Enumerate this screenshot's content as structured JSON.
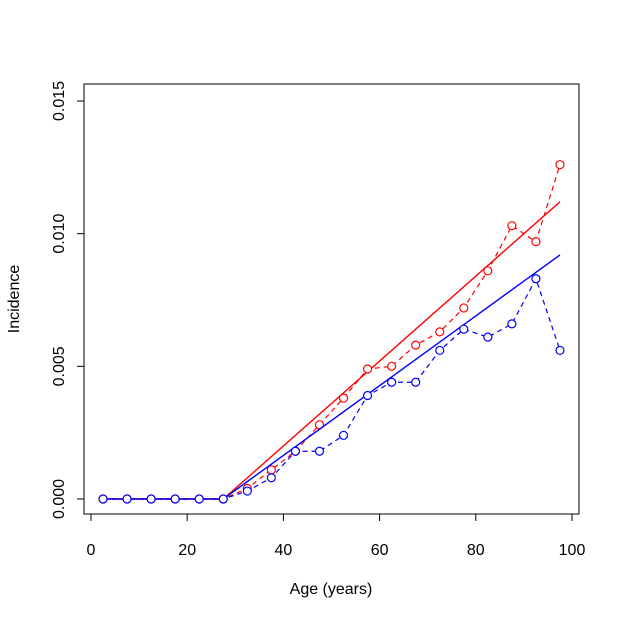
{
  "chart_data": {
    "type": "line",
    "title": "",
    "xlabel": "Age (years)",
    "ylabel": "Incidence",
    "xlim": [
      0,
      100
    ],
    "ylim": [
      0,
      0.015
    ],
    "x_ticks": [
      0,
      20,
      40,
      60,
      80,
      100
    ],
    "y_ticks": [
      0.0,
      0.005,
      0.01,
      0.015
    ],
    "x_tick_labels": [
      "0",
      "20",
      "40",
      "60",
      "80",
      "100"
    ],
    "y_tick_labels": [
      "0.000",
      "0.005",
      "0.010",
      "0.015"
    ],
    "grid": false,
    "x": [
      2.5,
      7.5,
      12.5,
      17.5,
      22.5,
      27.5,
      32.5,
      37.5,
      42.5,
      47.5,
      52.5,
      57.5,
      62.5,
      67.5,
      72.5,
      77.5,
      82.5,
      87.5,
      92.5,
      97.5
    ],
    "series": [
      {
        "color": "#ff0000",
        "observed": [
          0,
          0,
          0,
          0,
          0,
          0,
          0.0004,
          0.0011,
          0.0018,
          0.0028,
          0.0038,
          0.0049,
          0.005,
          0.0058,
          0.0063,
          0.0072,
          0.0086,
          0.0103,
          0.0097,
          0.0126
        ],
        "fit": {
          "x": [
            2.5,
            27.5,
            97.5
          ],
          "y": [
            0,
            0,
            0.0112
          ]
        }
      },
      {
        "color": "#0000ff",
        "observed": [
          0,
          0,
          0,
          0,
          0,
          0,
          0.0003,
          0.0008,
          0.0018,
          0.0018,
          0.0024,
          0.0039,
          0.0044,
          0.0044,
          0.0056,
          0.0064,
          0.0061,
          0.0066,
          0.0083,
          0.0056
        ],
        "fit": {
          "x": [
            2.5,
            27.5,
            97.5
          ],
          "y": [
            0,
            0,
            0.0092
          ]
        }
      }
    ]
  }
}
